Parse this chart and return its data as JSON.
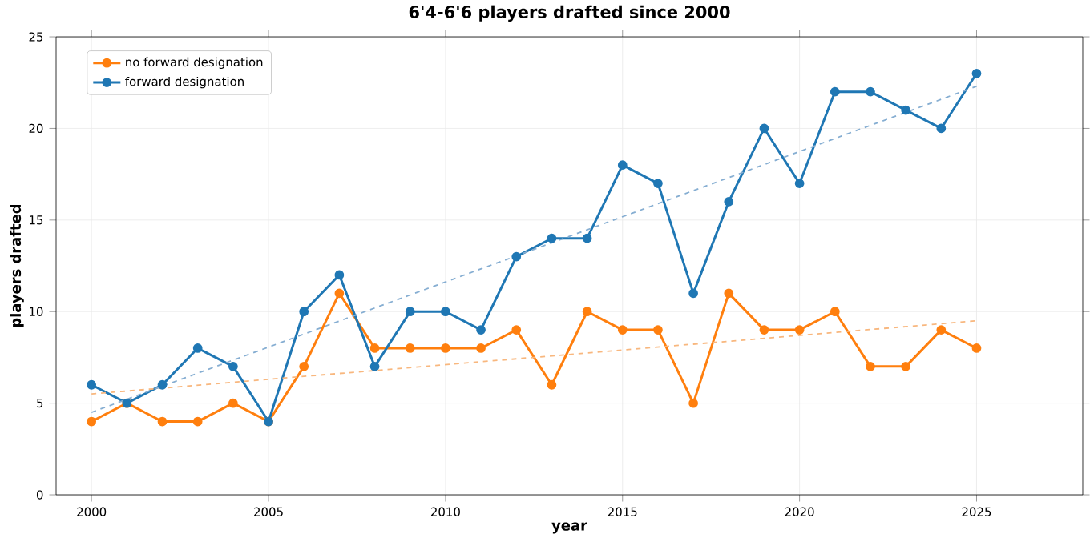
{
  "chart_data": {
    "type": "line",
    "title": "6'4-6'6 players drafted since 2000",
    "xlabel": "year",
    "ylabel": "players drafted",
    "xlim": [
      1999,
      2028
    ],
    "ylim": [
      0,
      25
    ],
    "xticks": [
      2000,
      2005,
      2010,
      2015,
      2020,
      2025
    ],
    "yticks": [
      0,
      5,
      10,
      15,
      20,
      25
    ],
    "grid": true,
    "legend": "top left",
    "marker": "circle",
    "line_style": "solid",
    "series": [
      {
        "name": "no forward designation",
        "color": "#ff7f0e",
        "x": [
          2000,
          2001,
          2002,
          2003,
          2004,
          2005,
          2006,
          2007,
          2008,
          2009,
          2010,
          2011,
          2012,
          2013,
          2014,
          2015,
          2016,
          2017,
          2018,
          2019,
          2020,
          2021,
          2022,
          2023,
          2024,
          2025
        ],
        "values": [
          4,
          5,
          4,
          4,
          5,
          4,
          7,
          11,
          8,
          8,
          8,
          8,
          9,
          6,
          10,
          9,
          9,
          5,
          11,
          9,
          9,
          10,
          7,
          7,
          9,
          8
        ]
      },
      {
        "name": "forward designation",
        "color": "#1f77b4",
        "x": [
          2000,
          2001,
          2002,
          2003,
          2004,
          2005,
          2006,
          2007,
          2008,
          2009,
          2010,
          2011,
          2012,
          2013,
          2014,
          2015,
          2016,
          2017,
          2018,
          2019,
          2020,
          2021,
          2022,
          2023,
          2024,
          2025
        ],
        "values": [
          6,
          5,
          6,
          8,
          7,
          4,
          10,
          12,
          7,
          10,
          10,
          9,
          13,
          14,
          14,
          18,
          17,
          11,
          16,
          20,
          17,
          22,
          22,
          21,
          20,
          23
        ]
      },
      {
        "color": "#f8b77e",
        "x": [
          2000,
          2025
        ],
        "values": [
          5.5,
          9.5
        ],
        "marker": "none",
        "line_style": "dashed"
      },
      {
        "color": "#86aed2",
        "x": [
          2000,
          2025
        ],
        "values": [
          4.5,
          22.3
        ],
        "marker": "none",
        "line_style": "dashed"
      }
    ]
  }
}
